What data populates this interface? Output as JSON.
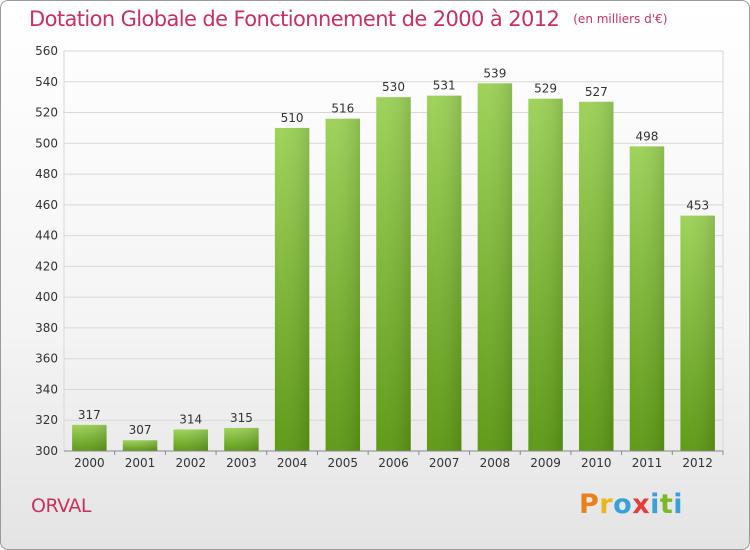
{
  "title": "Dotation Globale de Fonctionnement de 2000 à 2012",
  "subtitle": "(en milliers d'€)",
  "commune": "ORVAL",
  "brand": {
    "letters": [
      "P",
      "r",
      "o",
      "x",
      "i",
      "t",
      "i"
    ],
    "colors": [
      "#e8801c",
      "#e8b81c",
      "#3aa0d8",
      "#e83c3c",
      "#3aa0d8",
      "#7ab82a",
      "#3aa0d8"
    ]
  },
  "chart_data": {
    "type": "bar",
    "title": "Dotation Globale de Fonctionnement de 2000 à 2012",
    "subtitle": "(en milliers d'€)",
    "categories": [
      "2000",
      "2001",
      "2002",
      "2003",
      "2004",
      "2005",
      "2006",
      "2007",
      "2008",
      "2009",
      "2010",
      "2011",
      "2012"
    ],
    "values": [
      317,
      307,
      314,
      315,
      510,
      516,
      530,
      531,
      539,
      529,
      527,
      498,
      453
    ],
    "ylim": [
      300,
      560
    ],
    "yticks": [
      300,
      320,
      340,
      360,
      380,
      400,
      420,
      440,
      460,
      480,
      500,
      520,
      540,
      560
    ],
    "grid": true,
    "bar_color": "#8cc63f"
  }
}
